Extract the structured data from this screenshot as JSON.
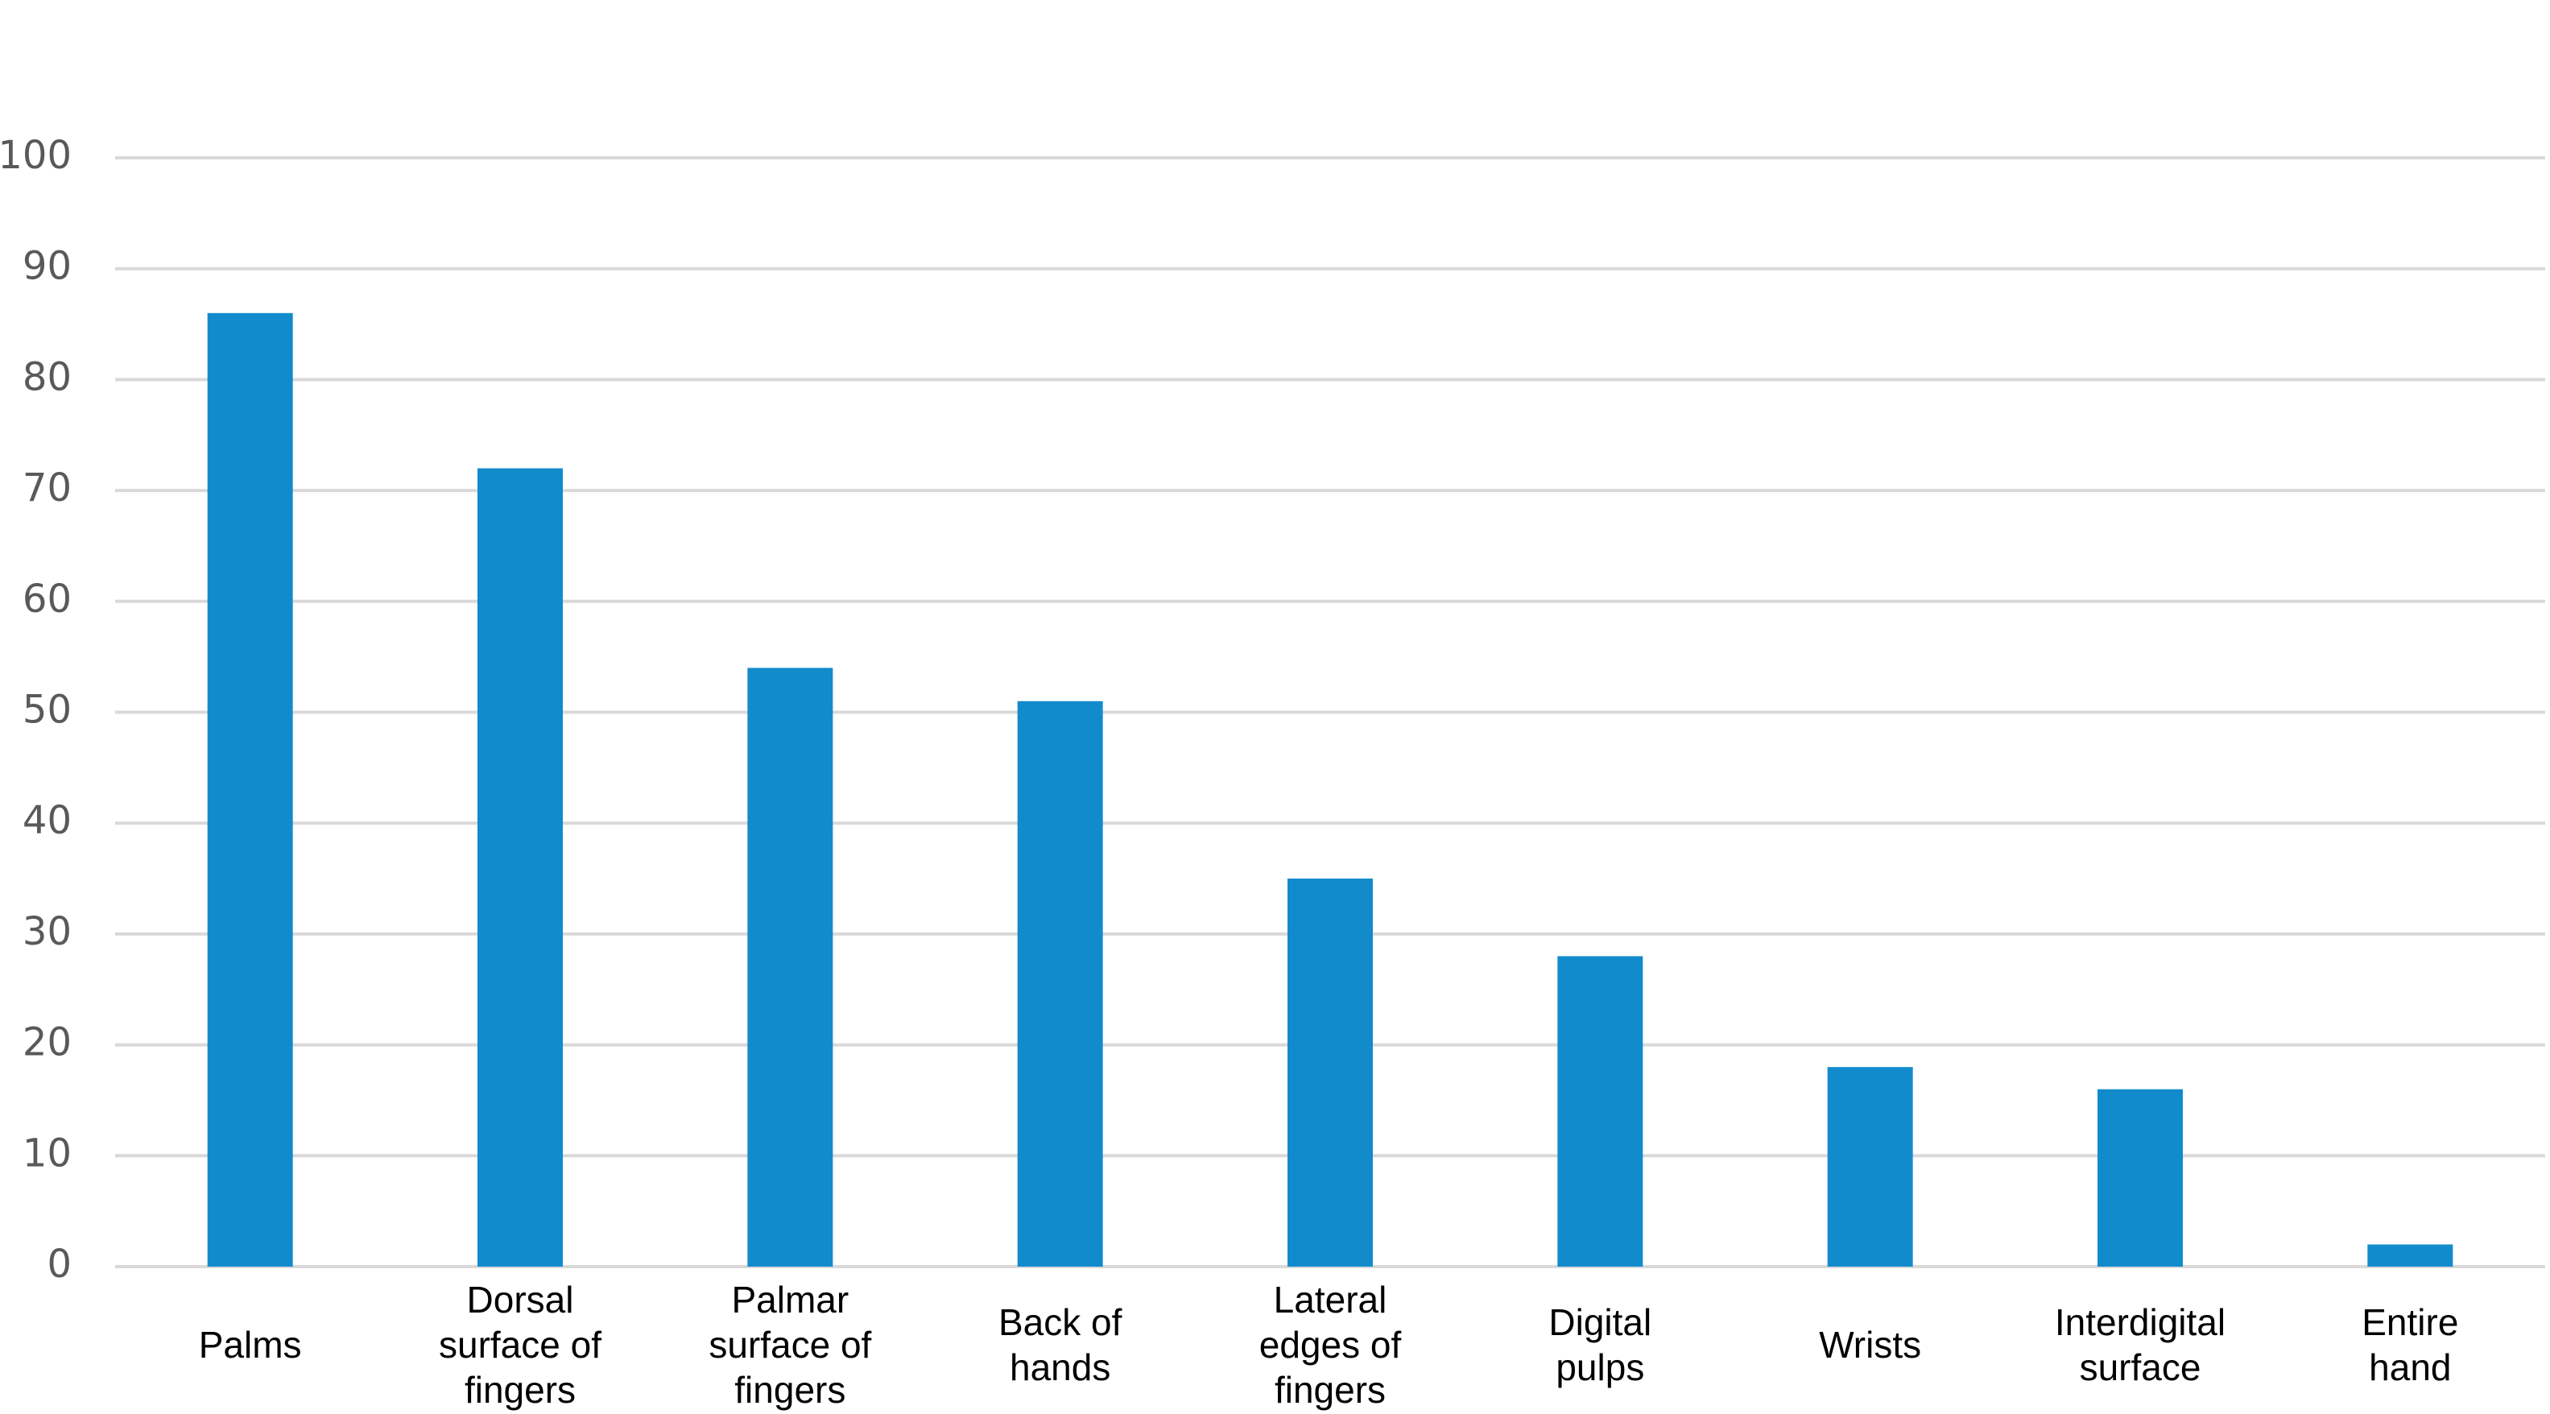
{
  "chart_data": {
    "type": "bar",
    "categories": [
      "Palms",
      "Dorsal surface of fingers",
      "Palmar surface of fingers",
      "Back of hands",
      "Lateral edges of fingers",
      "Digital pulps",
      "Wrists",
      "Interdigital surface",
      "Entire hand"
    ],
    "values": [
      86,
      72,
      54,
      51,
      35,
      28,
      18,
      16,
      2
    ],
    "color": "#128bcc",
    "ylim": [
      0,
      100
    ],
    "yticks": [
      0,
      10,
      20,
      30,
      40,
      50,
      60,
      70,
      80,
      90,
      100
    ],
    "grid": true
  }
}
